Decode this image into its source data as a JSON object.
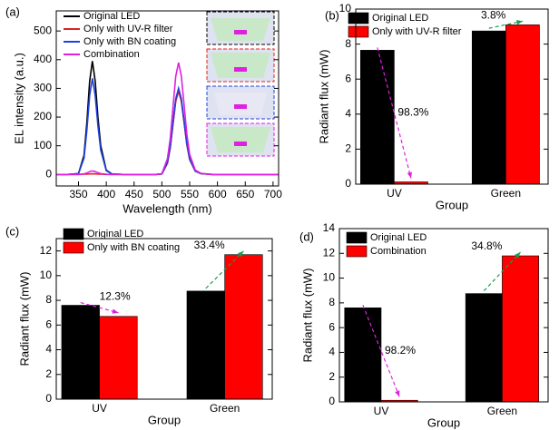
{
  "chart_data": [
    {
      "type": "line",
      "label": "(a)",
      "xlabel": "Wavelength (nm)",
      "ylabel": "EL intensity (a.u.)",
      "x": [
        310,
        330,
        350,
        360,
        365,
        370,
        375,
        380,
        385,
        390,
        400,
        410,
        430,
        450,
        470,
        490,
        500,
        510,
        515,
        520,
        525,
        530,
        535,
        540,
        545,
        550,
        560,
        570,
        590,
        620,
        650,
        680,
        710
      ],
      "series": [
        {
          "name": "Original LED",
          "color": "#000000",
          "values": [
            0,
            0,
            3,
            67,
            180,
            325,
            395,
            325,
            200,
            100,
            15,
            2,
            0,
            0,
            0,
            0,
            2,
            40,
            95,
            177,
            260,
            295,
            260,
            183,
            106,
            53,
            12,
            3,
            0,
            0,
            0,
            0,
            0
          ]
        },
        {
          "name": "Only with UV-R filter",
          "color": "#e02020",
          "values": [
            0,
            0,
            0,
            1,
            1,
            2,
            2,
            2,
            1,
            1,
            0,
            0,
            0,
            0,
            0,
            0,
            2,
            39,
            93,
            174,
            255,
            290,
            255,
            180,
            104,
            52,
            12,
            3,
            0,
            0,
            0,
            0,
            0
          ]
        },
        {
          "name": "Only with BN coating",
          "color": "#2040e0",
          "values": [
            0,
            0,
            3,
            57,
            153,
            275,
            335,
            275,
            170,
            85,
            13,
            2,
            0,
            0,
            0,
            0,
            2,
            42,
            96,
            180,
            264,
            300,
            264,
            186,
            108,
            54,
            12,
            3,
            0,
            0,
            0,
            0,
            0
          ]
        },
        {
          "name": "Combination",
          "color": "#e020e0",
          "values": [
            0,
            0,
            0,
            2,
            5,
            10,
            12,
            10,
            6,
            3,
            1,
            0,
            0,
            0,
            0,
            0,
            3,
            55,
            125,
            234,
            343,
            390,
            343,
            242,
            140,
            70,
            16,
            4,
            0,
            0,
            0,
            0,
            0
          ]
        }
      ],
      "xlim": [
        310,
        710
      ],
      "xticks": [
        350,
        400,
        450,
        500,
        550,
        600,
        650,
        700
      ],
      "ylim": [
        -40,
        570
      ],
      "yticks": [
        0,
        100,
        200,
        300,
        400,
        500
      ],
      "legend": "upper left"
    },
    {
      "type": "bar",
      "label": "(b)",
      "xlabel": "Group",
      "ylabel": "Radiant flux (mW)",
      "categories": [
        "UV",
        "Green"
      ],
      "series": [
        {
          "name": "Original LED",
          "color": "#000000",
          "values": [
            7.65,
            8.75
          ]
        },
        {
          "name": "Only with UV-R filter",
          "color": "#ff0000",
          "values": [
            0.13,
            9.1
          ]
        }
      ],
      "ylim": [
        0,
        10
      ],
      "yticks": [
        0,
        2,
        4,
        6,
        8,
        10
      ],
      "legend": "upper left",
      "annotations": [
        {
          "text": "98.3%",
          "color": "#e020e0"
        },
        {
          "text": "3.8%",
          "color": "#1a9e50"
        }
      ]
    },
    {
      "type": "bar",
      "label": "(c)",
      "xlabel": "Group",
      "ylabel": "Radiant flux (mW)",
      "categories": [
        "UV",
        "Green"
      ],
      "series": [
        {
          "name": "Original LED",
          "color": "#000000",
          "values": [
            7.6,
            8.75
          ]
        },
        {
          "name": "Only with BN coating",
          "color": "#ff0000",
          "values": [
            6.7,
            11.7
          ]
        }
      ],
      "ylim": [
        0,
        13
      ],
      "yticks": [
        0,
        2,
        4,
        6,
        8,
        10,
        12
      ],
      "legend": "upper left",
      "annotations": [
        {
          "text": "12.3%",
          "color": "#e020e0"
        },
        {
          "text": "33.4%",
          "color": "#1a9e50"
        }
      ]
    },
    {
      "type": "bar",
      "label": "(d)",
      "xlabel": "Group",
      "ylabel": "Radiant flux (mW)",
      "categories": [
        "UV",
        "Green"
      ],
      "series": [
        {
          "name": "Original LED",
          "color": "#000000",
          "values": [
            7.6,
            8.75
          ]
        },
        {
          "name": "Combination",
          "color": "#ff0000",
          "values": [
            0.13,
            11.8
          ]
        }
      ],
      "ylim": [
        0,
        14
      ],
      "yticks": [
        0,
        2,
        4,
        6,
        8,
        10,
        12,
        14
      ],
      "legend": "upper left",
      "annotations": [
        {
          "text": "98.2%",
          "color": "#e020e0"
        },
        {
          "text": "34.8%",
          "color": "#1a9e50"
        }
      ]
    }
  ]
}
